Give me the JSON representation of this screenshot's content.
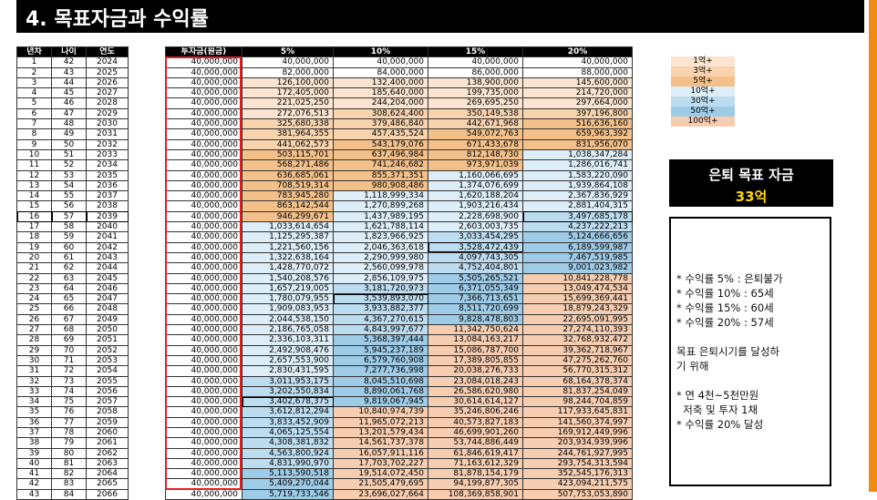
{
  "title": "4. 목표자금과 수익률",
  "left_headers": [
    "년차",
    "나이",
    "연도"
  ],
  "right_headers": [
    "투자금(원금)",
    "5%",
    "10%",
    "15%",
    "20%"
  ],
  "rows": [
    [
      "1",
      "42",
      "2024",
      "40,000,000",
      "40,000,000",
      "40,000,000",
      "40,000,000",
      "40,000,000"
    ],
    [
      "2",
      "43",
      "2025",
      "40,000,000",
      "82,000,000",
      "84,000,000",
      "86,000,000",
      "88,000,000"
    ],
    [
      "3",
      "44",
      "2026",
      "40,000,000",
      "126,100,000",
      "132,400,000",
      "138,900,000",
      "145,600,000"
    ],
    [
      "4",
      "45",
      "2027",
      "40,000,000",
      "172,405,000",
      "185,640,000",
      "199,735,000",
      "214,720,000"
    ],
    [
      "5",
      "46",
      "2028",
      "40,000,000",
      "221,025,250",
      "244,204,000",
      "269,695,250",
      "297,664,000"
    ],
    [
      "6",
      "47",
      "2029",
      "40,000,000",
      "272,076,513",
      "308,624,400",
      "350,149,538",
      "397,196,800"
    ],
    [
      "7",
      "48",
      "2030",
      "40,000,000",
      "325,680,338",
      "379,486,840",
      "442,671,968",
      "516,636,160"
    ],
    [
      "8",
      "49",
      "2031",
      "40,000,000",
      "381,964,355",
      "457,435,524",
      "549,072,763",
      "659,963,392"
    ],
    [
      "9",
      "50",
      "2032",
      "40,000,000",
      "441,062,573",
      "543,179,076",
      "671,433,678",
      "831,956,070"
    ],
    [
      "10",
      "51",
      "2033",
      "40,000,000",
      "503,115,701",
      "637,496,984",
      "812,148,730",
      "1,038,347,284"
    ],
    [
      "11",
      "52",
      "2034",
      "40,000,000",
      "568,271,486",
      "741,246,682",
      "973,971,039",
      "1,286,016,741"
    ],
    [
      "12",
      "53",
      "2035",
      "40,000,000",
      "636,685,061",
      "855,371,351",
      "1,160,066,695",
      "1,583,220,090"
    ],
    [
      "13",
      "54",
      "2036",
      "40,000,000",
      "708,519,314",
      "980,908,486",
      "1,374,076,699",
      "1,939,864,108"
    ],
    [
      "14",
      "55",
      "2037",
      "40,000,000",
      "783,945,280",
      "1,118,999,334",
      "1,620,188,204",
      "2,367,836,929"
    ],
    [
      "15",
      "56",
      "2038",
      "40,000,000",
      "863,142,544",
      "1,270,899,268",
      "1,903,216,434",
      "2,881,404,315"
    ],
    [
      "16",
      "57",
      "2039",
      "40,000,000",
      "946,299,671",
      "1,437,989,195",
      "2,228,698,900",
      "3,497,685,178"
    ],
    [
      "17",
      "58",
      "2040",
      "40,000,000",
      "1,033,614,654",
      "1,621,788,114",
      "2,603,003,735",
      "4,237,222,213"
    ],
    [
      "18",
      "59",
      "2041",
      "40,000,000",
      "1,125,295,387",
      "1,823,966,925",
      "3,033,454,295",
      "5,124,666,656"
    ],
    [
      "19",
      "60",
      "2042",
      "40,000,000",
      "1,221,560,156",
      "2,046,363,618",
      "3,528,472,439",
      "6,189,599,987"
    ],
    [
      "20",
      "61",
      "2043",
      "40,000,000",
      "1,322,638,164",
      "2,290,999,980",
      "4,097,743,305",
      "7,467,519,985"
    ],
    [
      "21",
      "62",
      "2044",
      "40,000,000",
      "1,428,770,072",
      "2,560,099,978",
      "4,752,404,801",
      "9,001,023,982"
    ],
    [
      "22",
      "63",
      "2045",
      "40,000,000",
      "1,540,208,576",
      "2,856,109,975",
      "5,505,265,521",
      "10,841,228,778"
    ],
    [
      "23",
      "64",
      "2046",
      "40,000,000",
      "1,657,219,005",
      "3,181,720,973",
      "6,371,055,349",
      "13,049,474,534"
    ],
    [
      "24",
      "65",
      "2047",
      "40,000,000",
      "1,780,079,955",
      "3,539,893,070",
      "7,366,713,651",
      "15,699,369,441"
    ],
    [
      "25",
      "66",
      "2048",
      "40,000,000",
      "1,909,083,953",
      "3,933,882,377",
      "8,511,720,699",
      "18,879,243,329"
    ],
    [
      "26",
      "67",
      "2049",
      "40,000,000",
      "2,044,538,150",
      "4,367,270,615",
      "9,828,478,803",
      "22,695,091,995"
    ],
    [
      "27",
      "68",
      "2050",
      "40,000,000",
      "2,186,765,058",
      "4,843,997,677",
      "11,342,750,624",
      "27,274,110,393"
    ],
    [
      "28",
      "69",
      "2051",
      "40,000,000",
      "2,336,103,311",
      "5,368,397,444",
      "13,084,163,217",
      "32,768,932,472"
    ],
    [
      "29",
      "70",
      "2052",
      "40,000,000",
      "2,492,908,476",
      "5,945,237,189",
      "15,086,787,700",
      "39,362,718,967"
    ],
    [
      "30",
      "71",
      "2053",
      "40,000,000",
      "2,657,553,900",
      "6,579,760,908",
      "17,389,805,855",
      "47,275,262,760"
    ],
    [
      "31",
      "72",
      "2054",
      "40,000,000",
      "2,830,431,595",
      "7,277,736,998",
      "20,038,276,733",
      "56,770,315,312"
    ],
    [
      "32",
      "73",
      "2055",
      "40,000,000",
      "3,011,953,175",
      "8,045,510,698",
      "23,084,018,243",
      "68,164,378,374"
    ],
    [
      "33",
      "74",
      "2056",
      "40,000,000",
      "3,202,550,834",
      "8,890,061,768",
      "26,586,620,980",
      "81,837,254,049"
    ],
    [
      "34",
      "75",
      "2057",
      "40,000,000",
      "3,402,678,375",
      "9,819,067,945",
      "30,614,614,127",
      "98,244,704,859"
    ],
    [
      "35",
      "76",
      "2058",
      "40,000,000",
      "3,612,812,294",
      "10,840,974,739",
      "35,246,806,246",
      "117,933,645,831"
    ],
    [
      "36",
      "77",
      "2059",
      "40,000,000",
      "3,833,452,909",
      "11,965,072,213",
      "40,573,827,183",
      "141,560,374,997"
    ],
    [
      "37",
      "78",
      "2060",
      "40,000,000",
      "4,065,125,554",
      "13,201,579,434",
      "46,699,901,260",
      "169,912,449,996"
    ],
    [
      "38",
      "79",
      "2061",
      "40,000,000",
      "4,308,381,832",
      "14,561,737,378",
      "53,744,886,449",
      "203,934,939,996"
    ],
    [
      "39",
      "80",
      "2062",
      "40,000,000",
      "4,563,800,924",
      "16,057,911,116",
      "61,846,619,417",
      "244,761,927,995"
    ],
    [
      "40",
      "81",
      "2063",
      "40,000,000",
      "4,831,990,970",
      "17,703,702,227",
      "71,163,612,329",
      "293,754,313,594"
    ],
    [
      "41",
      "82",
      "2064",
      "40,000,000",
      "5,113,590,518",
      "19,514,072,450",
      "81,878,154,179",
      "352,545,176,313"
    ],
    [
      "42",
      "83",
      "2065",
      "40,000,000",
      "5,409,270,044",
      "21,505,479,695",
      "94,199,877,305",
      "423,094,211,575"
    ],
    [
      "43",
      "84",
      "2066",
      "40,000,000",
      "5,719,733,546",
      "23,696,027,664",
      "108,369,858,901",
      "507,753,053,890"
    ]
  ],
  "legend": [
    {
      "label": "1억+",
      "color": "#fbe5d0"
    },
    {
      "label": "3억+",
      "color": "#f8d4ae"
    },
    {
      "label": "5억+",
      "color": "#f3c08a"
    },
    {
      "label": "10억+",
      "color": "#ddeef8"
    },
    {
      "label": "30억+",
      "color": "#bcdcef"
    },
    {
      "label": "50억+",
      "color": "#9ecbe6"
    },
    {
      "label": "100억+",
      "color": "#f6cdb0"
    }
  ],
  "highlight_row_years": [
    "16"
  ],
  "goal": {
    "label": "은퇴 목표 자금",
    "amount": "33억"
  },
  "notes": [
    "* 수익률 5% : 은퇴불가",
    "* 수익률 10% : 65세",
    "* 수익률 15% : 60세",
    "* 수익률 20% : 57세",
    "",
    "목표 은퇴시기를 달성하",
    "기 위해",
    "",
    "* 연 4천~5천만원",
    "  저축 및 투자 1채",
    "* 수익률 20% 달성"
  ]
}
